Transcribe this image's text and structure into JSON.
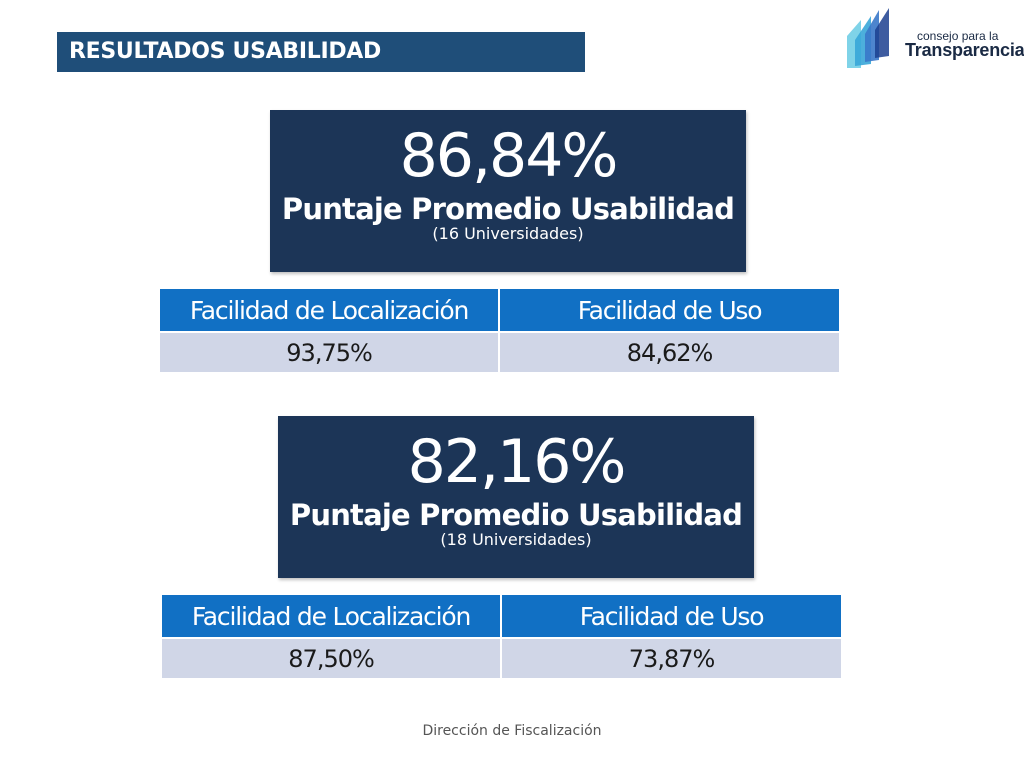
{
  "header": {
    "title": "RESULTADOS USABILIDAD"
  },
  "logo": {
    "line1": "consejo para la",
    "line2": "Transparencia",
    "colors": [
      "#1c3f8f",
      "#3a78c9",
      "#39a6d8",
      "#7fd3e8"
    ]
  },
  "groups": [
    {
      "score": "86,84%",
      "label": "Puntaje Promedio Usabilidad",
      "sub": "(16 Universidades)",
      "columns": [
        "Facilidad de Localización",
        "Facilidad de Uso"
      ],
      "values": [
        "93,75%",
        "84,62%"
      ]
    },
    {
      "score": "82,16%",
      "label": "Puntaje Promedio Usabilidad",
      "sub": "(18 Universidades)",
      "columns": [
        "Facilidad de Localización",
        "Facilidad de Uso"
      ],
      "values": [
        "87,50%",
        "73,87%"
      ]
    }
  ],
  "footer": {
    "text": "Dirección de Fiscalización"
  },
  "colors": {
    "title_bar": "#1f4e79",
    "score_box": "#1c3557",
    "table_header": "#1170c4",
    "table_cell": "#d0d6e7"
  }
}
